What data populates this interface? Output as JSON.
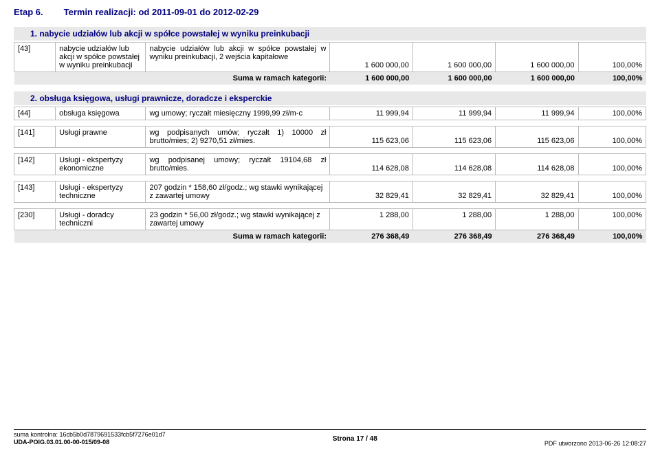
{
  "stage": {
    "label": "Etap 6.",
    "term": "Termin realizacji: od 2011-09-01 do 2012-02-29"
  },
  "section1": {
    "title": "1. nabycie udziałów lub akcji w spółce powstałej w wyniku preinkubacji",
    "row": {
      "id": "[43]",
      "name": "nabycie udziałów lub akcji w spółce powstałej w wyniku preinkubacji",
      "desc": "nabycie udziałów lub akcji w spółce powstałej w wyniku preinkubacji, 2 wejścia kapitałowe",
      "v1": "1 600 000,00",
      "v2": "1 600 000,00",
      "v3": "1 600 000,00",
      "pct": "100,00%"
    },
    "sum": {
      "label": "Suma w ramach kategorii:",
      "v1": "1 600 000,00",
      "v2": "1 600 000,00",
      "v3": "1 600 000,00",
      "pct": "100,00%"
    }
  },
  "section2": {
    "title": "2. obsługa księgowa, usługi prawnicze, doradcze i eksperckie",
    "row44": {
      "id": "[44]",
      "name": "obsługa księgowa",
      "desc": "wg umowy; ryczałt miesięczny 1999,99 zł/m-c",
      "v1": "11 999,94",
      "v2": "11 999,94",
      "v3": "11 999,94",
      "pct": "100,00%"
    },
    "row141": {
      "id": "[141]",
      "name": "Usługi prawne",
      "desc": "wg podpisanych umów; ryczałt 1) 10000 zł brutto/mies; 2) 9270,51 zł/mies.",
      "v1": "115 623,06",
      "v2": "115 623,06",
      "v3": "115 623,06",
      "pct": "100,00%"
    },
    "row142": {
      "id": "[142]",
      "name": "Usługi - ekspertyzy ekonomiczne",
      "desc": "wg podpisanej umowy; ryczałt 19104,68 zł brutto/mies.",
      "v1": "114 628,08",
      "v2": "114 628,08",
      "v3": "114 628,08",
      "pct": "100,00%"
    },
    "row143": {
      "id": "[143]",
      "name": "Usługi - ekspertyzy techniczne",
      "desc": "207 godzin * 158,60 zł/godz.; wg stawki wynikającej z zawartej umowy",
      "v1": "32 829,41",
      "v2": "32 829,41",
      "v3": "32 829,41",
      "pct": "100,00%"
    },
    "row230": {
      "id": "[230]",
      "name": "Usługi - doradcy techniczni",
      "desc": "23 godzin * 56,00 zł/godz.; wg stawki wynikającej z zawartej umowy",
      "v1": "1 288,00",
      "v2": "1 288,00",
      "v3": "1 288,00",
      "pct": "100,00%"
    },
    "sum": {
      "label": "Suma w ramach kategorii:",
      "v1": "276 368,49",
      "v2": "276 368,49",
      "v3": "276 368,49",
      "pct": "100,00%"
    }
  },
  "footer": {
    "checksum": "suma kontrolna: 16cb5b0d7879691533fcb5f7276e01d7",
    "uda": "UDA-POIG.03.01.00-00-015/09-08",
    "page": "Strona 17 / 48",
    "pdf": "PDF utworzono 2013-06-26 12:08:27"
  }
}
